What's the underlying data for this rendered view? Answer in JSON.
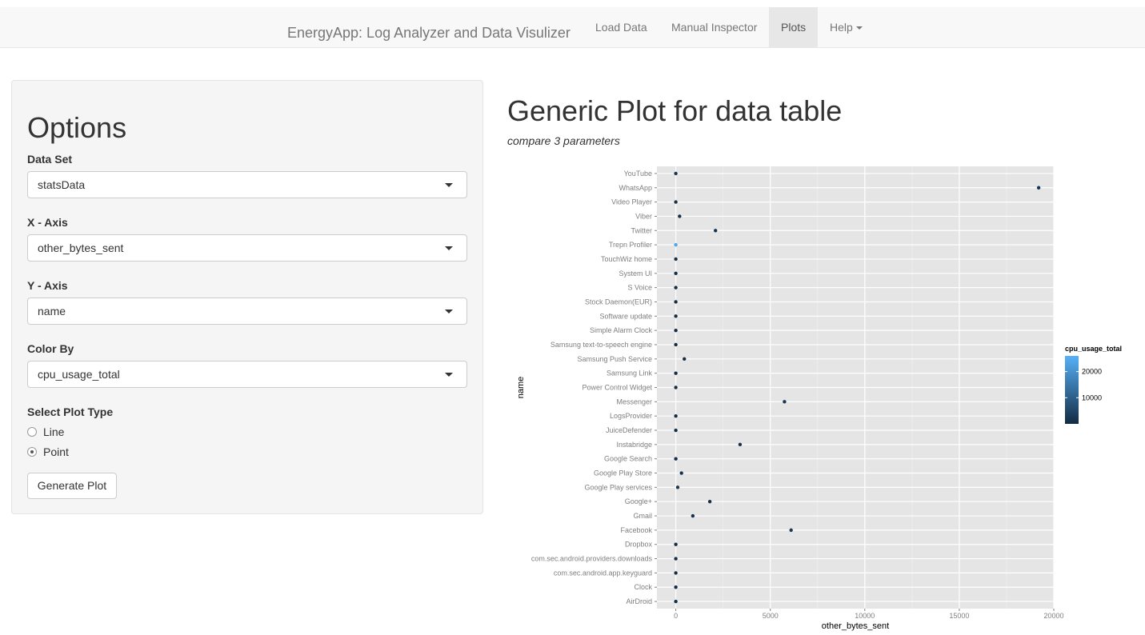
{
  "navbar": {
    "brand": "EnergyApp: Log Analyzer and Data Visulizer",
    "items": [
      {
        "label": "Load Data",
        "active": false
      },
      {
        "label": "Manual Inspector",
        "active": false
      },
      {
        "label": "Plots",
        "active": true
      },
      {
        "label": "Help",
        "active": false
      }
    ]
  },
  "options": {
    "title": "Options",
    "dataset_label": "Data Set",
    "dataset_value": "statsData",
    "xaxis_label": "X - Axis",
    "xaxis_value": "other_bytes_sent",
    "yaxis_label": "Y - Axis",
    "yaxis_value": "name",
    "colorby_label": "Color By",
    "colorby_value": "cpu_usage_total",
    "plottype_label": "Select Plot Type",
    "plottype_options": [
      "Line",
      "Point"
    ],
    "plottype_selected": "Point",
    "generate_label": "Generate Plot"
  },
  "main": {
    "title": "Generic Plot for data table",
    "subtitle": "compare 3 parameters"
  },
  "chart_data": {
    "type": "scatter",
    "xlabel": "other_bytes_sent",
    "ylabel": "name",
    "xlim": [
      -1000,
      20000
    ],
    "xticks": [
      0,
      5000,
      10000,
      15000,
      20000
    ],
    "legend": {
      "title": "cpu_usage_total",
      "placement": "right",
      "ticks": [
        10000,
        20000
      ],
      "range": [
        0,
        26000
      ],
      "low_color": "#132B43",
      "high_color": "#56B1F7"
    },
    "categories": [
      "YouTube",
      "WhatsApp",
      "Video Player",
      "Viber",
      "Twitter",
      "Trepn Profiler",
      "TouchWiz home",
      "System UI",
      "S Voice",
      "Stock Daemon(EUR)",
      "Software update",
      "Simple Alarm Clock",
      "Samsung text-to-speech engine",
      "Samsung Push Service",
      "Samsung Link",
      "Power Control Widget",
      "Messenger",
      "LogsProvider",
      "JuiceDefender",
      "Instabridge",
      "Google Search",
      "Google Play Store",
      "Google Play services",
      "Google+",
      "Gmail",
      "Facebook",
      "Dropbox",
      "com.sec.android.providers.downloads",
      "com.sec.android.app.keyguard",
      "Clock",
      "AirDroid"
    ],
    "x": [
      0,
      19200,
      0,
      200,
      2100,
      0,
      0,
      0,
      0,
      0,
      0,
      0,
      0,
      450,
      0,
      0,
      5750,
      0,
      0,
      3400,
      0,
      300,
      100,
      1800,
      900,
      6100,
      0,
      0,
      0,
      0,
      0
    ],
    "color_value": [
      2000,
      1500,
      1200,
      1000,
      1500,
      24000,
      1000,
      800,
      500,
      500,
      500,
      400,
      400,
      800,
      500,
      400,
      2000,
      500,
      500,
      1000,
      800,
      1500,
      2500,
      1000,
      1200,
      3000,
      500,
      400,
      400,
      400,
      500
    ]
  }
}
